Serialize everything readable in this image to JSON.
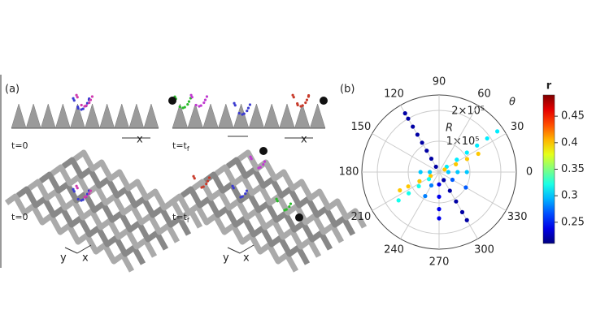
{
  "panel_a": {
    "label": "(a)",
    "top_left": {
      "time": "t=0",
      "axis": "x"
    },
    "top_right": {
      "time": {
        "main": "t=t",
        "sub": "f"
      },
      "axis": "x"
    },
    "bottom_left": {
      "time": "t=0",
      "axis_y": "y",
      "axis_x": "x"
    },
    "bottom_right": {
      "time": {
        "main": "t=t",
        "sub": "f"
      },
      "axis_y": "y",
      "axis_x": "x"
    }
  },
  "chart_data": {
    "type": "polar-scatter",
    "label": "(b)",
    "radial_label": "R",
    "angle_label": "θ",
    "colorbar_label": "r",
    "theta": [
      120,
      120,
      120,
      120,
      120,
      120,
      120,
      120,
      300,
      300,
      300,
      300,
      300,
      270,
      270,
      270,
      270,
      35,
      35,
      35,
      35,
      35,
      35,
      25,
      25,
      25,
      25,
      205,
      205,
      205,
      205,
      215,
      215,
      215,
      215,
      0,
      0,
      0,
      180,
      180,
      240,
      240,
      330,
      330
    ],
    "R": [
      20000,
      50000,
      80000,
      110000,
      140000,
      170000,
      200000,
      220000,
      30000,
      70000,
      110000,
      150000,
      180000,
      40000,
      80000,
      120000,
      150000,
      30000,
      70000,
      110000,
      150000,
      190000,
      230000,
      20000,
      60000,
      100000,
      140000,
      30000,
      70000,
      110000,
      140000,
      40000,
      80000,
      120000,
      160000,
      30000,
      60000,
      90000,
      30000,
      60000,
      50000,
      90000,
      50000,
      100000
    ],
    "c": [
      0.22,
      0.22,
      0.22,
      0.22,
      0.22,
      0.22,
      0.22,
      0.22,
      0.22,
      0.22,
      0.22,
      0.22,
      0.22,
      0.24,
      0.24,
      0.24,
      0.24,
      0.31,
      0.31,
      0.31,
      0.31,
      0.31,
      0.31,
      0.4,
      0.4,
      0.4,
      0.4,
      0.4,
      0.4,
      0.4,
      0.4,
      0.32,
      0.32,
      0.32,
      0.32,
      0.3,
      0.3,
      0.3,
      0.3,
      0.3,
      0.28,
      0.28,
      0.27,
      0.27
    ],
    "rlim": [
      0,
      250000
    ],
    "rticks": [
      {
        "value": 100000,
        "label": "1×10⁵"
      },
      {
        "value": 200000,
        "label": "2×10⁵"
      }
    ],
    "thetaticks": [
      0,
      30,
      60,
      90,
      120,
      150,
      180,
      210,
      240,
      270,
      300,
      330
    ],
    "clim": [
      0.21,
      0.49
    ],
    "cticks": [
      0.25,
      0.3,
      0.35,
      0.4,
      0.45
    ],
    "colormap": "jet",
    "grid": true
  }
}
